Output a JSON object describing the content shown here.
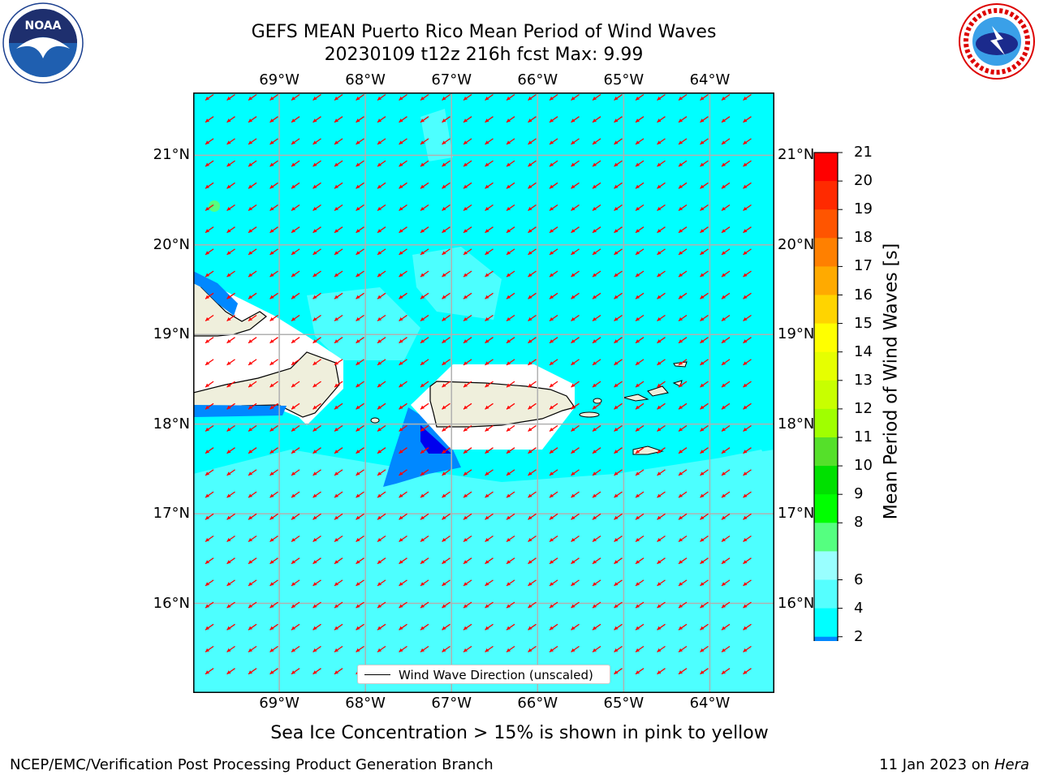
{
  "header": {
    "title_line1": "GEFS MEAN Puerto Rico Mean Period of Wind Waves",
    "title_line2": "20230109 t12z 216h fcst   Max: 9.99"
  },
  "logos": {
    "left": "noaa-logo",
    "right": "national-weather-service-logo"
  },
  "map": {
    "lon_labels": [
      "69°W",
      "68°W",
      "67°W",
      "66°W",
      "65°W",
      "64°W"
    ],
    "lat_labels": [
      "21°N",
      "20°N",
      "19°N",
      "18°N",
      "17°N",
      "16°N"
    ],
    "lon_values": [
      -69,
      -68,
      -67,
      -66,
      -65,
      -64
    ],
    "lat_values": [
      21,
      20,
      19,
      18,
      17,
      16
    ],
    "lon_range": [
      -70,
      -63.25
    ],
    "lat_range": [
      15,
      21.7
    ],
    "ocean_color": "#00ffff",
    "land_color": "#efefdc",
    "arrow_color": "#ff0000",
    "grid": true,
    "legend_label": "Wind Wave Direction (unscaled)",
    "legend_placement": "bottom-center"
  },
  "colorbar": {
    "title": "Mean Period of Wind Waves [s]",
    "ticks": [
      "21",
      "20",
      "19",
      "18",
      "17",
      "16",
      "15",
      "14",
      "13",
      "12",
      "11",
      "10",
      "9",
      "8",
      "6",
      "4",
      "2"
    ],
    "colors": [
      "#ff0000",
      "#ff2a00",
      "#ff5500",
      "#ff8000",
      "#ffaa00",
      "#ffd400",
      "#ffff00",
      "#e6ff00",
      "#c8ff00",
      "#a0ff00",
      "#55e02a",
      "#00e000",
      "#00ff00",
      "#55ff80",
      "#99ffff",
      "#55ffff",
      "#00ffff",
      "#0088ff"
    ],
    "extend_color": "#0000ff"
  },
  "note": "Sea Ice Concentration > 15% is shown in pink to yellow",
  "footer": {
    "left": "NCEP/EMC/Verification Post Processing Product Generation Branch",
    "right_date": "11 Jan 2023 on ",
    "right_host": "Hera"
  }
}
